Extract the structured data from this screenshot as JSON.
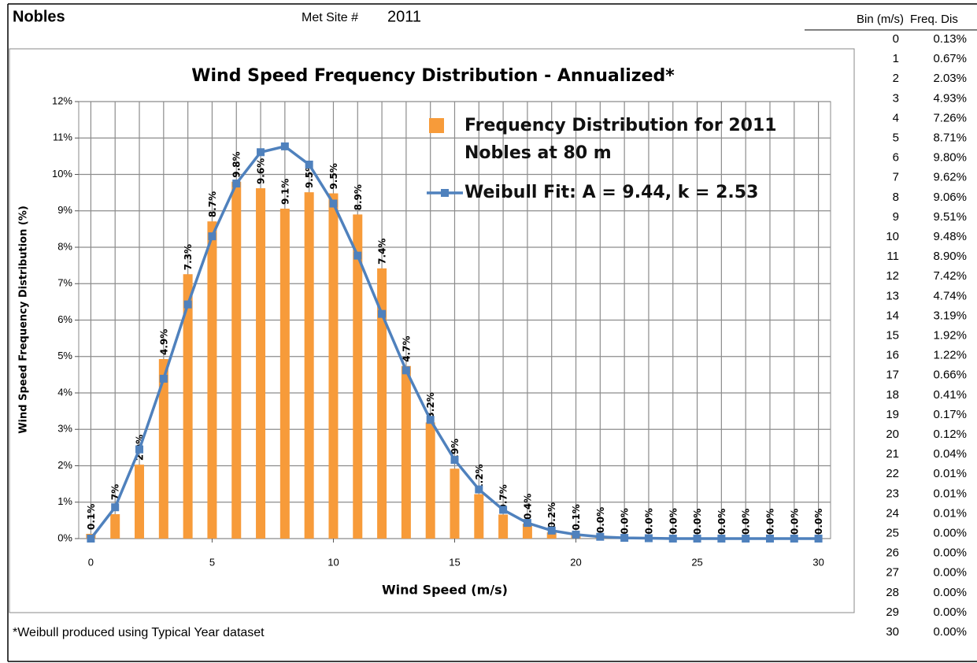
{
  "header": {
    "site": "Nobles",
    "met_label": "Met Site #",
    "met_number": "2011"
  },
  "chart_data": {
    "type": "bar_line",
    "title": "Wind Speed Frequency Distribution  - Annualized*",
    "x_label": "Wind Speed (m/s)",
    "y_label": "Wind  Speed Frequency Distribution (%)",
    "x": [
      0,
      1,
      2,
      3,
      4,
      5,
      6,
      7,
      8,
      9,
      10,
      11,
      12,
      13,
      14,
      15,
      16,
      17,
      18,
      19,
      20,
      21,
      22,
      23,
      24,
      25,
      26,
      27,
      28,
      29,
      30
    ],
    "xlim": [
      -0.5,
      30.5
    ],
    "xticks": [
      0,
      5,
      10,
      15,
      20,
      25,
      30
    ],
    "ylim": [
      0,
      12
    ],
    "yticks": [
      {
        "value": 0,
        "label": "0%"
      },
      {
        "value": 1,
        "label": "1%"
      },
      {
        "value": 2,
        "label": "2%"
      },
      {
        "value": 3,
        "label": "3%"
      },
      {
        "value": 4,
        "label": "4%"
      },
      {
        "value": 5,
        "label": "5%"
      },
      {
        "value": 6,
        "label": "6%"
      },
      {
        "value": 7,
        "label": "7%"
      },
      {
        "value": 8,
        "label": "8%"
      },
      {
        "value": 9,
        "label": "9%"
      },
      {
        "value": 10,
        "label": "10%"
      },
      {
        "value": 11,
        "label": "11%"
      },
      {
        "value": 12,
        "label": "12%"
      }
    ],
    "grid": true,
    "series": [
      {
        "name": "Frequency Distribution  for 2011 Nobles at 80 m",
        "type": "bar",
        "color": "#f79b3a",
        "values": [
          0.13,
          0.67,
          2.03,
          4.93,
          7.26,
          8.71,
          9.8,
          9.62,
          9.06,
          9.51,
          9.48,
          8.9,
          7.42,
          4.74,
          3.19,
          1.92,
          1.22,
          0.66,
          0.41,
          0.17,
          0.12,
          0.04,
          0.01,
          0.01,
          0.01,
          0,
          0,
          0,
          0,
          0,
          0
        ],
        "value_labels": [
          "0.1%",
          "0.7%",
          "2.0%",
          "4.9%",
          "7.3%",
          "8.7%",
          "9.8%",
          "9.6%",
          "9.1%",
          "9.5%",
          "9.5%",
          "8.9%",
          "7.4%",
          "4.7%",
          "3.2%",
          "1.9%",
          "1.2%",
          "0.7%",
          "0.4%",
          "0.2%",
          "0.1%",
          "0.0%",
          "0.0%",
          "0.0%",
          "0.0%",
          "0.0%",
          "0.0%",
          "0.0%",
          "0.0%",
          "0.0%",
          "0.0%"
        ]
      },
      {
        "name": "Weibull Fit: A = 9.44, k = 2.53",
        "type": "line",
        "color": "#4f81bd",
        "values": [
          0,
          0.86,
          2.45,
          4.39,
          6.43,
          8.3,
          9.75,
          10.61,
          10.77,
          10.27,
          9.2,
          7.77,
          6.17,
          4.62,
          3.26,
          2.16,
          1.35,
          0.79,
          0.43,
          0.22,
          0.11,
          0.05,
          0.02,
          0.01,
          0,
          0,
          0,
          0,
          0,
          0,
          0
        ]
      }
    ]
  },
  "table": {
    "header": [
      "Bin (m/s)",
      "Freq. Dis"
    ],
    "rows": [
      [
        "0",
        "0.13%"
      ],
      [
        "1",
        "0.67%"
      ],
      [
        "2",
        "2.03%"
      ],
      [
        "3",
        "4.93%"
      ],
      [
        "4",
        "7.26%"
      ],
      [
        "5",
        "8.71%"
      ],
      [
        "6",
        "9.80%"
      ],
      [
        "7",
        "9.62%"
      ],
      [
        "8",
        "9.06%"
      ],
      [
        "9",
        "9.51%"
      ],
      [
        "10",
        "9.48%"
      ],
      [
        "11",
        "8.90%"
      ],
      [
        "12",
        "7.42%"
      ],
      [
        "13",
        "4.74%"
      ],
      [
        "14",
        "3.19%"
      ],
      [
        "15",
        "1.92%"
      ],
      [
        "16",
        "1.22%"
      ],
      [
        "17",
        "0.66%"
      ],
      [
        "18",
        "0.41%"
      ],
      [
        "19",
        "0.17%"
      ],
      [
        "20",
        "0.12%"
      ],
      [
        "21",
        "0.04%"
      ],
      [
        "22",
        "0.01%"
      ],
      [
        "23",
        "0.01%"
      ],
      [
        "24",
        "0.01%"
      ],
      [
        "25",
        "0.00%"
      ],
      [
        "26",
        "0.00%"
      ],
      [
        "27",
        "0.00%"
      ],
      [
        "28",
        "0.00%"
      ],
      [
        "29",
        "0.00%"
      ],
      [
        "30",
        "0.00%"
      ]
    ]
  },
  "footnote": "*Weibull produced using Typical Year dataset"
}
